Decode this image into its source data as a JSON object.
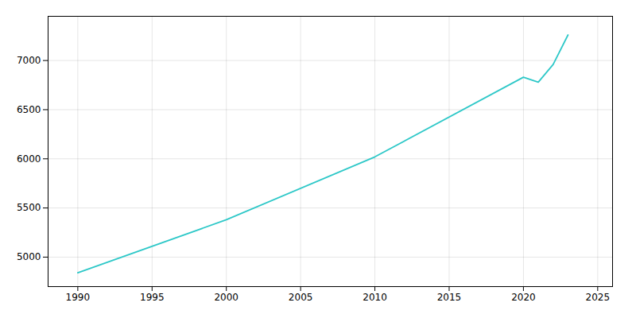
{
  "chart_data": {
    "type": "line",
    "x": [
      1990,
      2000,
      2010,
      2020,
      2021,
      2022,
      2023
    ],
    "values": [
      4840,
      5380,
      6020,
      6830,
      6780,
      6960,
      7260
    ],
    "color": "#2ec8c8",
    "xlim": [
      1988,
      2026
    ],
    "ylim": [
      4700,
      7450
    ],
    "xticks": [
      1990,
      1995,
      2000,
      2005,
      2010,
      2015,
      2020,
      2025
    ],
    "yticks": [
      5000,
      5500,
      6000,
      6500,
      7000
    ],
    "grid": true
  }
}
